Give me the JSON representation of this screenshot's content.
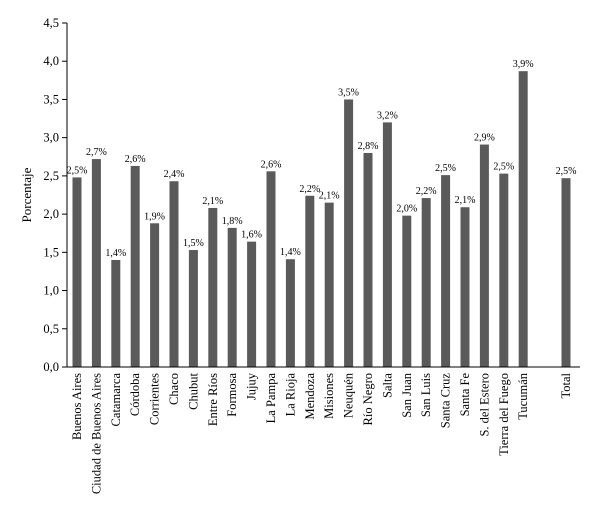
{
  "chart_data": {
    "type": "bar",
    "title": "",
    "xlabel": "",
    "ylabel": "Porcentaje",
    "ylim": [
      0,
      4.5
    ],
    "yticks": [
      "0,0",
      "0,5",
      "1,0",
      "1,5",
      "2,0",
      "2,5",
      "3,0",
      "3,5",
      "4,0",
      "4,5"
    ],
    "grid": false,
    "legend": "none",
    "bar_color": "#5a5a5a",
    "categories": [
      "Buenos Aires",
      "Ciudad de Buenos Aires",
      "Catamarca",
      "Córdoba",
      "Corrientes",
      "Chaco",
      "Chubut",
      "Entre Ríos",
      "Formosa",
      "Jujuy",
      "La Pampa",
      "La Rioja",
      "Mendoza",
      "Misiones",
      "Neuquén",
      "Río Negro",
      "Salta",
      "San Juan",
      "San Luis",
      "Santa Cruz",
      "Santa Fe",
      "S. del Estero",
      "Tierra del Fuego",
      "Tucumán",
      "Total"
    ],
    "values": [
      2.48,
      2.72,
      1.4,
      2.63,
      1.88,
      2.43,
      1.53,
      2.08,
      1.82,
      1.64,
      2.56,
      1.41,
      2.24,
      2.15,
      3.5,
      2.8,
      3.2,
      1.98,
      2.21,
      2.51,
      2.09,
      2.91,
      2.53,
      3.87,
      2.47
    ],
    "data_labels": [
      "2,5%",
      "2,7%",
      "1,4%",
      "2,6%",
      "1,9%",
      "2,4%",
      "1,5%",
      "2,1%",
      "1,8%",
      "1,6%",
      "2,6%",
      "1,4%",
      "2,2%",
      "2,1%",
      "3,5%",
      "2,8%",
      "3,2%",
      "2,0%",
      "2,2%",
      "2,5%",
      "2,1%",
      "2,9%",
      "2,5%",
      "3,9%",
      "2,5%"
    ]
  }
}
